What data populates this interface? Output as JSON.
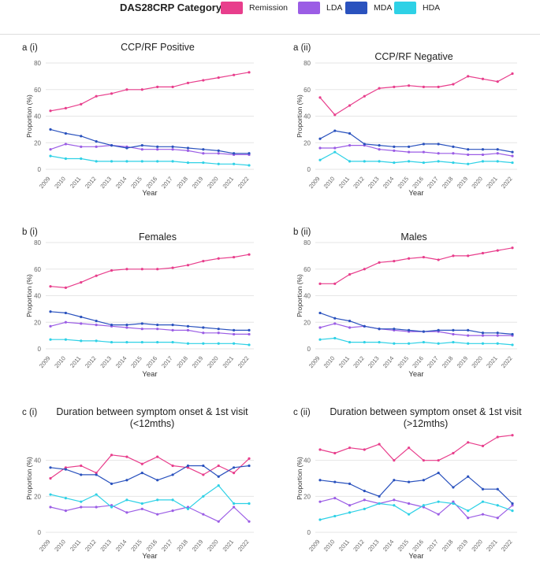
{
  "legend": {
    "title": "DAS28CRP Category",
    "items": [
      {
        "label": "Remission",
        "color": "#e83e8c"
      },
      {
        "label": "LDA",
        "color": "#9b5de5"
      },
      {
        "label": "MDA",
        "color": "#2a52be"
      },
      {
        "label": "HDA",
        "color": "#2ed1e6"
      }
    ]
  },
  "chart_data": [
    {
      "type": "line",
      "panel": "a (i)",
      "title": "CCP/RF Positive",
      "xlabel": "Year",
      "ylabel": "Proportion (%)",
      "ylim": [
        0,
        80
      ],
      "yticks": [
        0,
        20,
        40,
        60,
        80
      ],
      "categories": [
        "2009",
        "2010",
        "2011",
        "2012",
        "2013",
        "2014",
        "2015",
        "2016",
        "2017",
        "2018",
        "2019",
        "2020",
        "2021",
        "2022"
      ],
      "series": [
        {
          "name": "Remission",
          "values": [
            44,
            46,
            49,
            55,
            57,
            60,
            60,
            62,
            62,
            65,
            67,
            69,
            71,
            73
          ]
        },
        {
          "name": "LDA",
          "values": [
            15,
            19,
            17,
            17,
            18,
            17,
            15,
            15,
            15,
            14,
            12,
            12,
            11,
            11
          ]
        },
        {
          "name": "MDA",
          "values": [
            30,
            27,
            25,
            21,
            18,
            16,
            18,
            17,
            17,
            16,
            15,
            14,
            12,
            12
          ]
        },
        {
          "name": "HDA",
          "values": [
            10,
            8,
            8,
            6,
            6,
            6,
            6,
            6,
            6,
            5,
            5,
            4,
            4,
            3
          ]
        }
      ]
    },
    {
      "type": "line",
      "panel": "a (ii)",
      "title": "CCP/RF Negative",
      "xlabel": "Year",
      "ylabel": "Proportion (%)",
      "ylim": [
        0,
        80
      ],
      "yticks": [
        0,
        20,
        40,
        60,
        80
      ],
      "categories": [
        "2009",
        "2010",
        "2011",
        "2012",
        "2013",
        "2014",
        "2015",
        "2016",
        "2017",
        "2018",
        "2019",
        "2020",
        "2021",
        "2022"
      ],
      "series": [
        {
          "name": "Remission",
          "values": [
            54,
            41,
            48,
            55,
            61,
            62,
            63,
            62,
            62,
            64,
            70,
            68,
            66,
            72
          ]
        },
        {
          "name": "LDA",
          "values": [
            16,
            16,
            18,
            18,
            15,
            14,
            13,
            13,
            12,
            12,
            11,
            11,
            12,
            10
          ]
        },
        {
          "name": "MDA",
          "values": [
            23,
            29,
            27,
            19,
            18,
            17,
            17,
            19,
            19,
            17,
            15,
            15,
            15,
            13
          ]
        },
        {
          "name": "HDA",
          "values": [
            7,
            13,
            6,
            6,
            6,
            5,
            6,
            5,
            6,
            5,
            4,
            6,
            6,
            5
          ]
        }
      ]
    },
    {
      "type": "line",
      "panel": "b (i)",
      "title": "Females",
      "xlabel": "Year",
      "ylabel": "Proportion (%)",
      "ylim": [
        0,
        80
      ],
      "yticks": [
        0,
        20,
        40,
        60,
        80
      ],
      "categories": [
        "2009",
        "2010",
        "2011",
        "2012",
        "2013",
        "2014",
        "2015",
        "2016",
        "2017",
        "2018",
        "2019",
        "2020",
        "2021",
        "2022"
      ],
      "series": [
        {
          "name": "Remission",
          "values": [
            47,
            46,
            50,
            55,
            59,
            60,
            60,
            60,
            61,
            63,
            66,
            68,
            69,
            71
          ]
        },
        {
          "name": "LDA",
          "values": [
            17,
            20,
            19,
            18,
            17,
            16,
            15,
            15,
            14,
            14,
            12,
            12,
            11,
            11
          ]
        },
        {
          "name": "MDA",
          "values": [
            28,
            27,
            24,
            21,
            18,
            18,
            19,
            18,
            18,
            17,
            16,
            15,
            14,
            14
          ]
        },
        {
          "name": "HDA",
          "values": [
            7,
            7,
            6,
            6,
            5,
            5,
            5,
            5,
            5,
            4,
            4,
            4,
            4,
            3
          ]
        }
      ]
    },
    {
      "type": "line",
      "panel": "b (ii)",
      "title": "Males",
      "xlabel": "Year",
      "ylabel": "Proportion (%)",
      "ylim": [
        0,
        80
      ],
      "yticks": [
        0,
        20,
        40,
        60,
        80
      ],
      "categories": [
        "2009",
        "2010",
        "2011",
        "2012",
        "2013",
        "2014",
        "2015",
        "2016",
        "2017",
        "2018",
        "2019",
        "2020",
        "2021",
        "2022"
      ],
      "series": [
        {
          "name": "Remission",
          "values": [
            49,
            49,
            56,
            60,
            65,
            66,
            68,
            69,
            67,
            70,
            70,
            72,
            74,
            76
          ]
        },
        {
          "name": "LDA",
          "values": [
            16,
            19,
            16,
            17,
            15,
            14,
            13,
            13,
            13,
            11,
            10,
            10,
            10,
            10
          ]
        },
        {
          "name": "MDA",
          "values": [
            27,
            23,
            21,
            17,
            15,
            15,
            14,
            13,
            14,
            14,
            14,
            12,
            12,
            11
          ]
        },
        {
          "name": "HDA",
          "values": [
            7,
            8,
            5,
            5,
            5,
            4,
            4,
            5,
            4,
            5,
            4,
            4,
            4,
            3
          ]
        }
      ]
    },
    {
      "type": "line",
      "panel": "c (i)",
      "title": "Duration between symptom onset & 1st visit (<12mths)",
      "xlabel": "Year",
      "ylabel": "Proportion (%)",
      "ylim": [
        0,
        60
      ],
      "yticks": [
        0,
        20,
        40
      ],
      "categories": [
        "2009",
        "2010",
        "2011",
        "2012",
        "2013",
        "2014",
        "2015",
        "2016",
        "2017",
        "2018",
        "2019",
        "2020",
        "2021",
        "2022"
      ],
      "series": [
        {
          "name": "Remission",
          "values": [
            30,
            36,
            37,
            33,
            43,
            42,
            38,
            42,
            37,
            36,
            32,
            37,
            33,
            41
          ]
        },
        {
          "name": "LDA",
          "values": [
            14,
            12,
            14,
            14,
            15,
            11,
            13,
            10,
            12,
            14,
            10,
            6,
            14,
            6
          ]
        },
        {
          "name": "MDA",
          "values": [
            36,
            35,
            32,
            32,
            27,
            29,
            33,
            29,
            32,
            37,
            37,
            31,
            36,
            37
          ]
        },
        {
          "name": "HDA",
          "values": [
            21,
            19,
            17,
            21,
            14,
            18,
            16,
            18,
            18,
            13,
            20,
            26,
            16,
            16
          ]
        }
      ]
    },
    {
      "type": "line",
      "panel": "c (ii)",
      "title": "Duration between symptom onset & 1st visit (>12mths)",
      "xlabel": "Year",
      "ylabel": "Proportion (%)",
      "ylim": [
        0,
        60
      ],
      "yticks": [
        0,
        20,
        40
      ],
      "categories": [
        "2009",
        "2010",
        "2011",
        "2012",
        "2013",
        "2014",
        "2015",
        "2016",
        "2017",
        "2018",
        "2019",
        "2020",
        "2021",
        "2022"
      ],
      "series": [
        {
          "name": "Remission",
          "values": [
            46,
            44,
            47,
            46,
            49,
            40,
            47,
            40,
            40,
            44,
            50,
            48,
            53,
            54
          ]
        },
        {
          "name": "LDA",
          "values": [
            17,
            19,
            15,
            18,
            16,
            18,
            16,
            14,
            10,
            17,
            8,
            10,
            8,
            15
          ]
        },
        {
          "name": "MDA",
          "values": [
            29,
            28,
            27,
            23,
            20,
            29,
            28,
            29,
            33,
            25,
            31,
            24,
            24,
            16
          ]
        },
        {
          "name": "HDA",
          "values": [
            7,
            9,
            11,
            13,
            16,
            15,
            10,
            15,
            17,
            16,
            12,
            17,
            15,
            12
          ]
        }
      ]
    }
  ]
}
